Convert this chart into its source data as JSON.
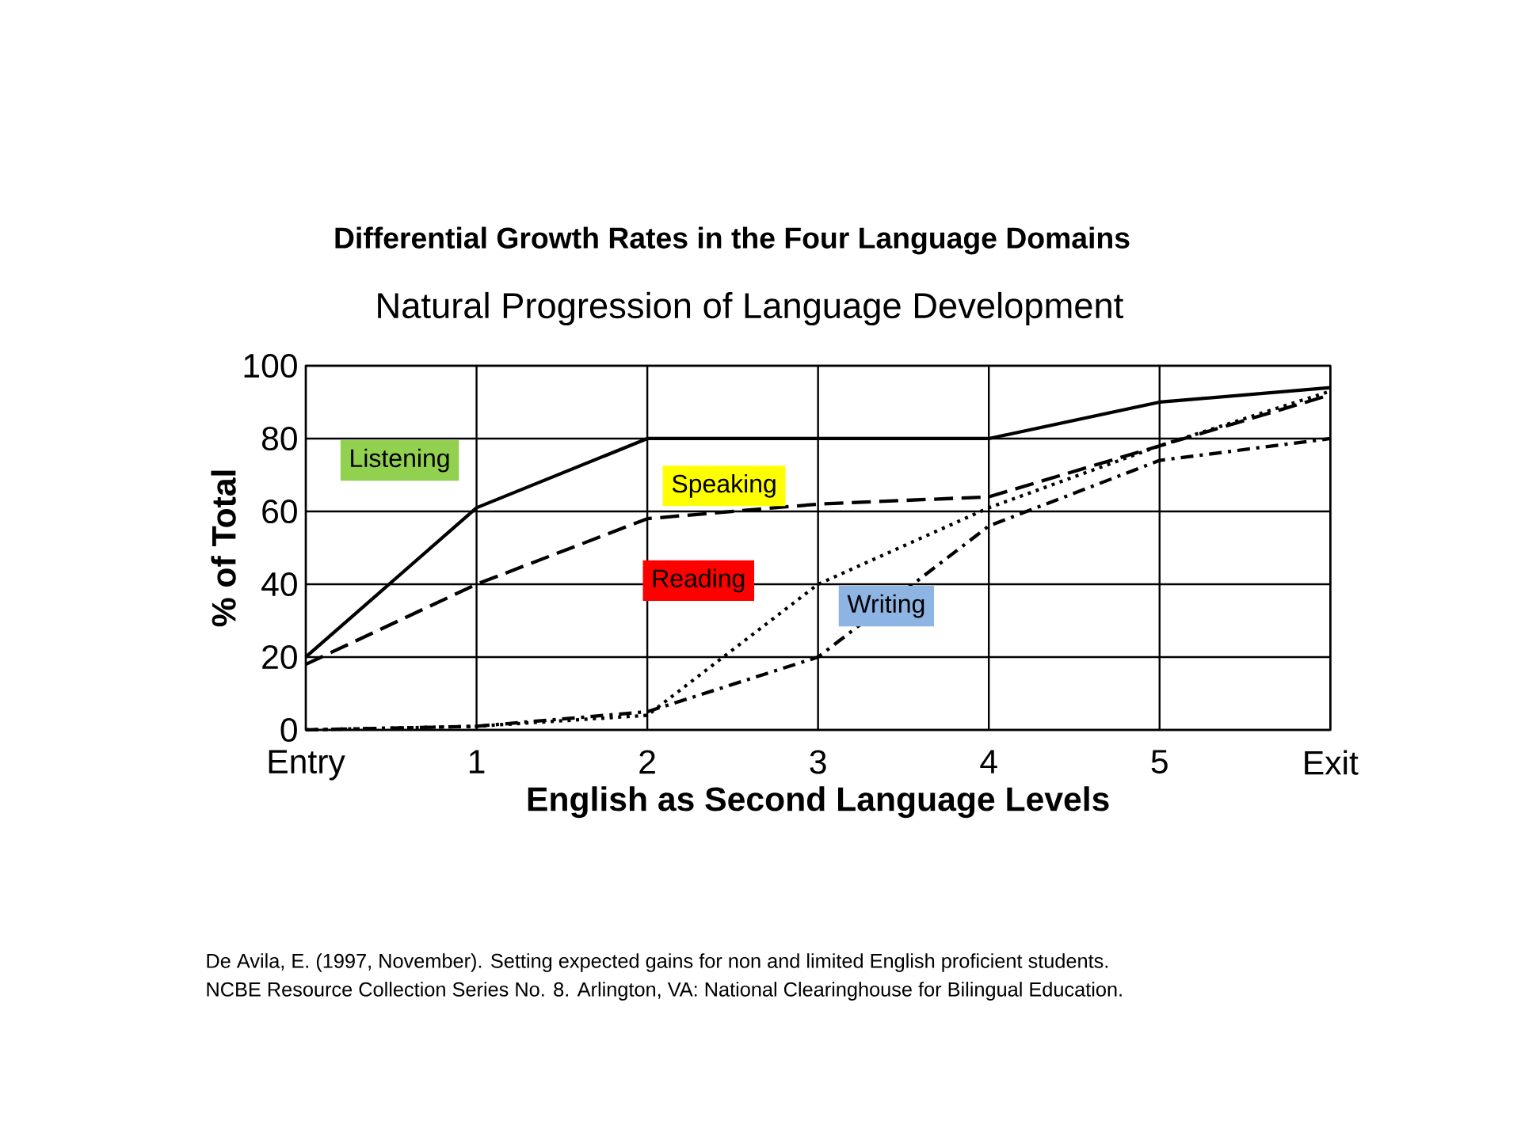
{
  "chart_data": {
    "type": "line",
    "title": "Differential Growth Rates in the Four Language Domains",
    "subtitle": "Natural Progression of Language Development",
    "xlabel": "English as Second Language Levels",
    "ylabel": "% of Total",
    "categories": [
      "Entry",
      "1",
      "2",
      "3",
      "4",
      "5",
      "Exit"
    ],
    "ylim": [
      0,
      100
    ],
    "yticks": [
      0,
      20,
      40,
      60,
      80,
      100
    ],
    "grid": true,
    "legend": false,
    "marker": "none",
    "series": [
      {
        "name": "Listening",
        "color": "#000000",
        "line_style": "solid",
        "values": [
          20,
          61,
          80,
          80,
          80,
          90,
          94
        ]
      },
      {
        "name": "Speaking",
        "color": "#000000",
        "line_style": "dashed",
        "values": [
          18,
          40,
          58,
          62,
          64,
          78,
          92
        ]
      },
      {
        "name": "Reading",
        "color": "#000000",
        "line_style": "dotted",
        "values": [
          0,
          1,
          4,
          40,
          61,
          78,
          93
        ]
      },
      {
        "name": "Writing",
        "color": "#000000",
        "line_style": "dashdot",
        "values": [
          0,
          1,
          5,
          20,
          56,
          74,
          80
        ]
      }
    ],
    "annotations": [
      "De Avila, E. (1997, November).  Setting expected gains for non and limited English proficient students.",
      "NCBE Resource Collection Series No. 8. Arlington,  VA: National Clearinghouse for Bilingual Education."
    ]
  }
}
